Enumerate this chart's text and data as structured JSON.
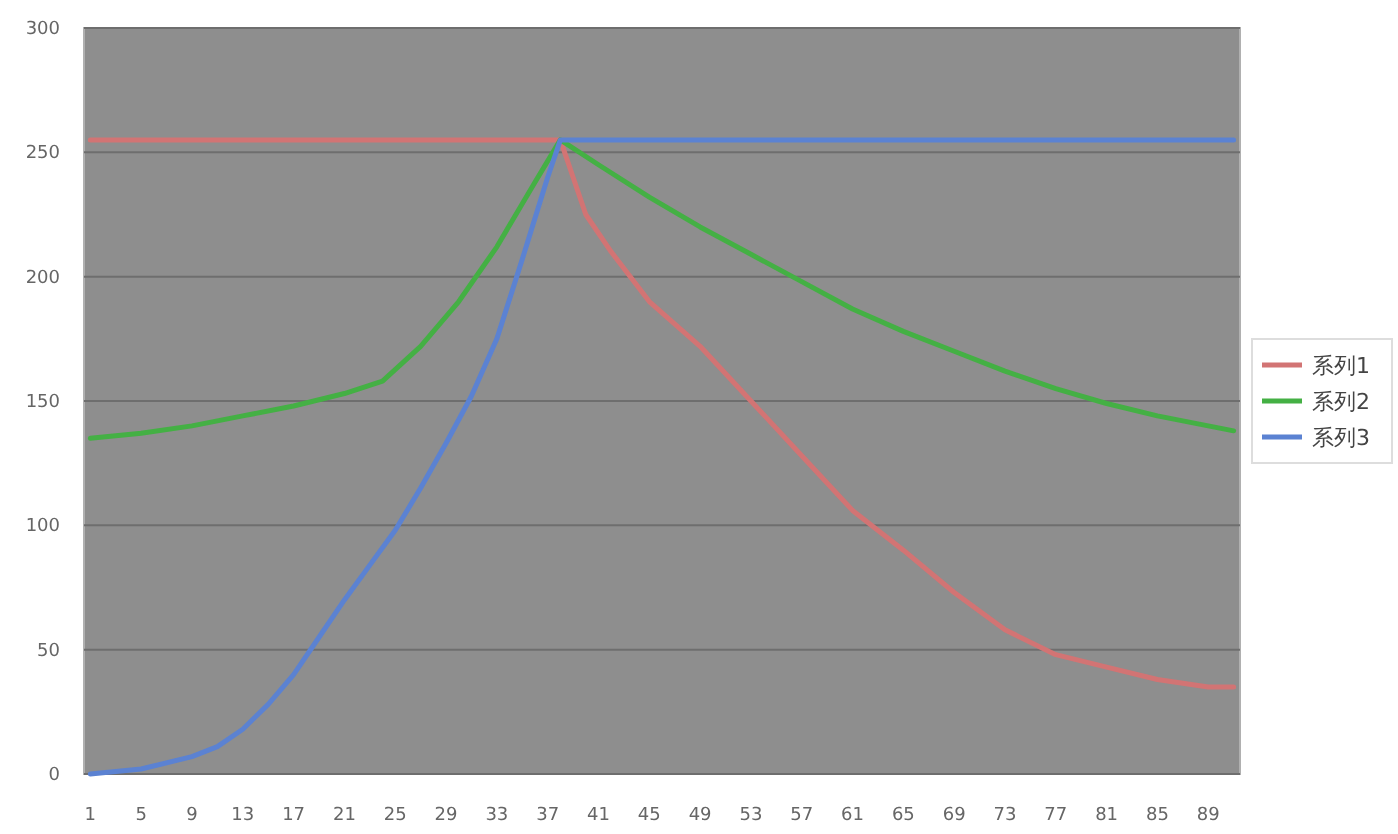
{
  "chart_data": {
    "type": "line",
    "xlim": [
      0.5,
      91.5
    ],
    "xticks": [
      1,
      5,
      9,
      13,
      17,
      21,
      25,
      29,
      33,
      37,
      41,
      45,
      49,
      53,
      57,
      61,
      65,
      69,
      73,
      77,
      81,
      85,
      89
    ],
    "ylim": [
      0,
      300
    ],
    "yticks": [
      0,
      50,
      100,
      150,
      200,
      250,
      300
    ],
    "grid": "y",
    "legend": "right",
    "marker": "none",
    "line_style": "solid",
    "series": [
      {
        "name": "系列1",
        "color": "#d27474",
        "x": [
          1,
          38,
          39,
          40,
          42,
          45,
          49,
          53,
          57,
          61,
          65,
          69,
          73,
          77,
          81,
          85,
          89,
          91
        ],
        "values": [
          255,
          255,
          240,
          225,
          210,
          190,
          172,
          150,
          128,
          106,
          90,
          73,
          58,
          48,
          43,
          38,
          35,
          35
        ]
      },
      {
        "name": "系列2",
        "color": "#44b044",
        "x": [
          1,
          5,
          9,
          13,
          17,
          21,
          24,
          27,
          30,
          33,
          36,
          38,
          41,
          45,
          49,
          53,
          57,
          61,
          65,
          69,
          73,
          77,
          81,
          85,
          89,
          91
        ],
        "values": [
          135,
          137,
          140,
          144,
          148,
          153,
          158,
          172,
          190,
          212,
          238,
          255,
          245,
          232,
          220,
          209,
          198,
          187,
          178,
          170,
          162,
          155,
          149,
          144,
          140,
          138
        ]
      },
      {
        "name": "系列3",
        "color": "#5b82d2",
        "x": [
          1,
          5,
          9,
          11,
          13,
          15,
          17,
          19,
          21,
          23,
          25,
          27,
          29,
          31,
          33,
          35,
          37,
          38,
          91
        ],
        "values": [
          0,
          2,
          7,
          11,
          18,
          28,
          40,
          55,
          70,
          84,
          98,
          115,
          133,
          152,
          175,
          207,
          240,
          255,
          255
        ]
      }
    ]
  }
}
